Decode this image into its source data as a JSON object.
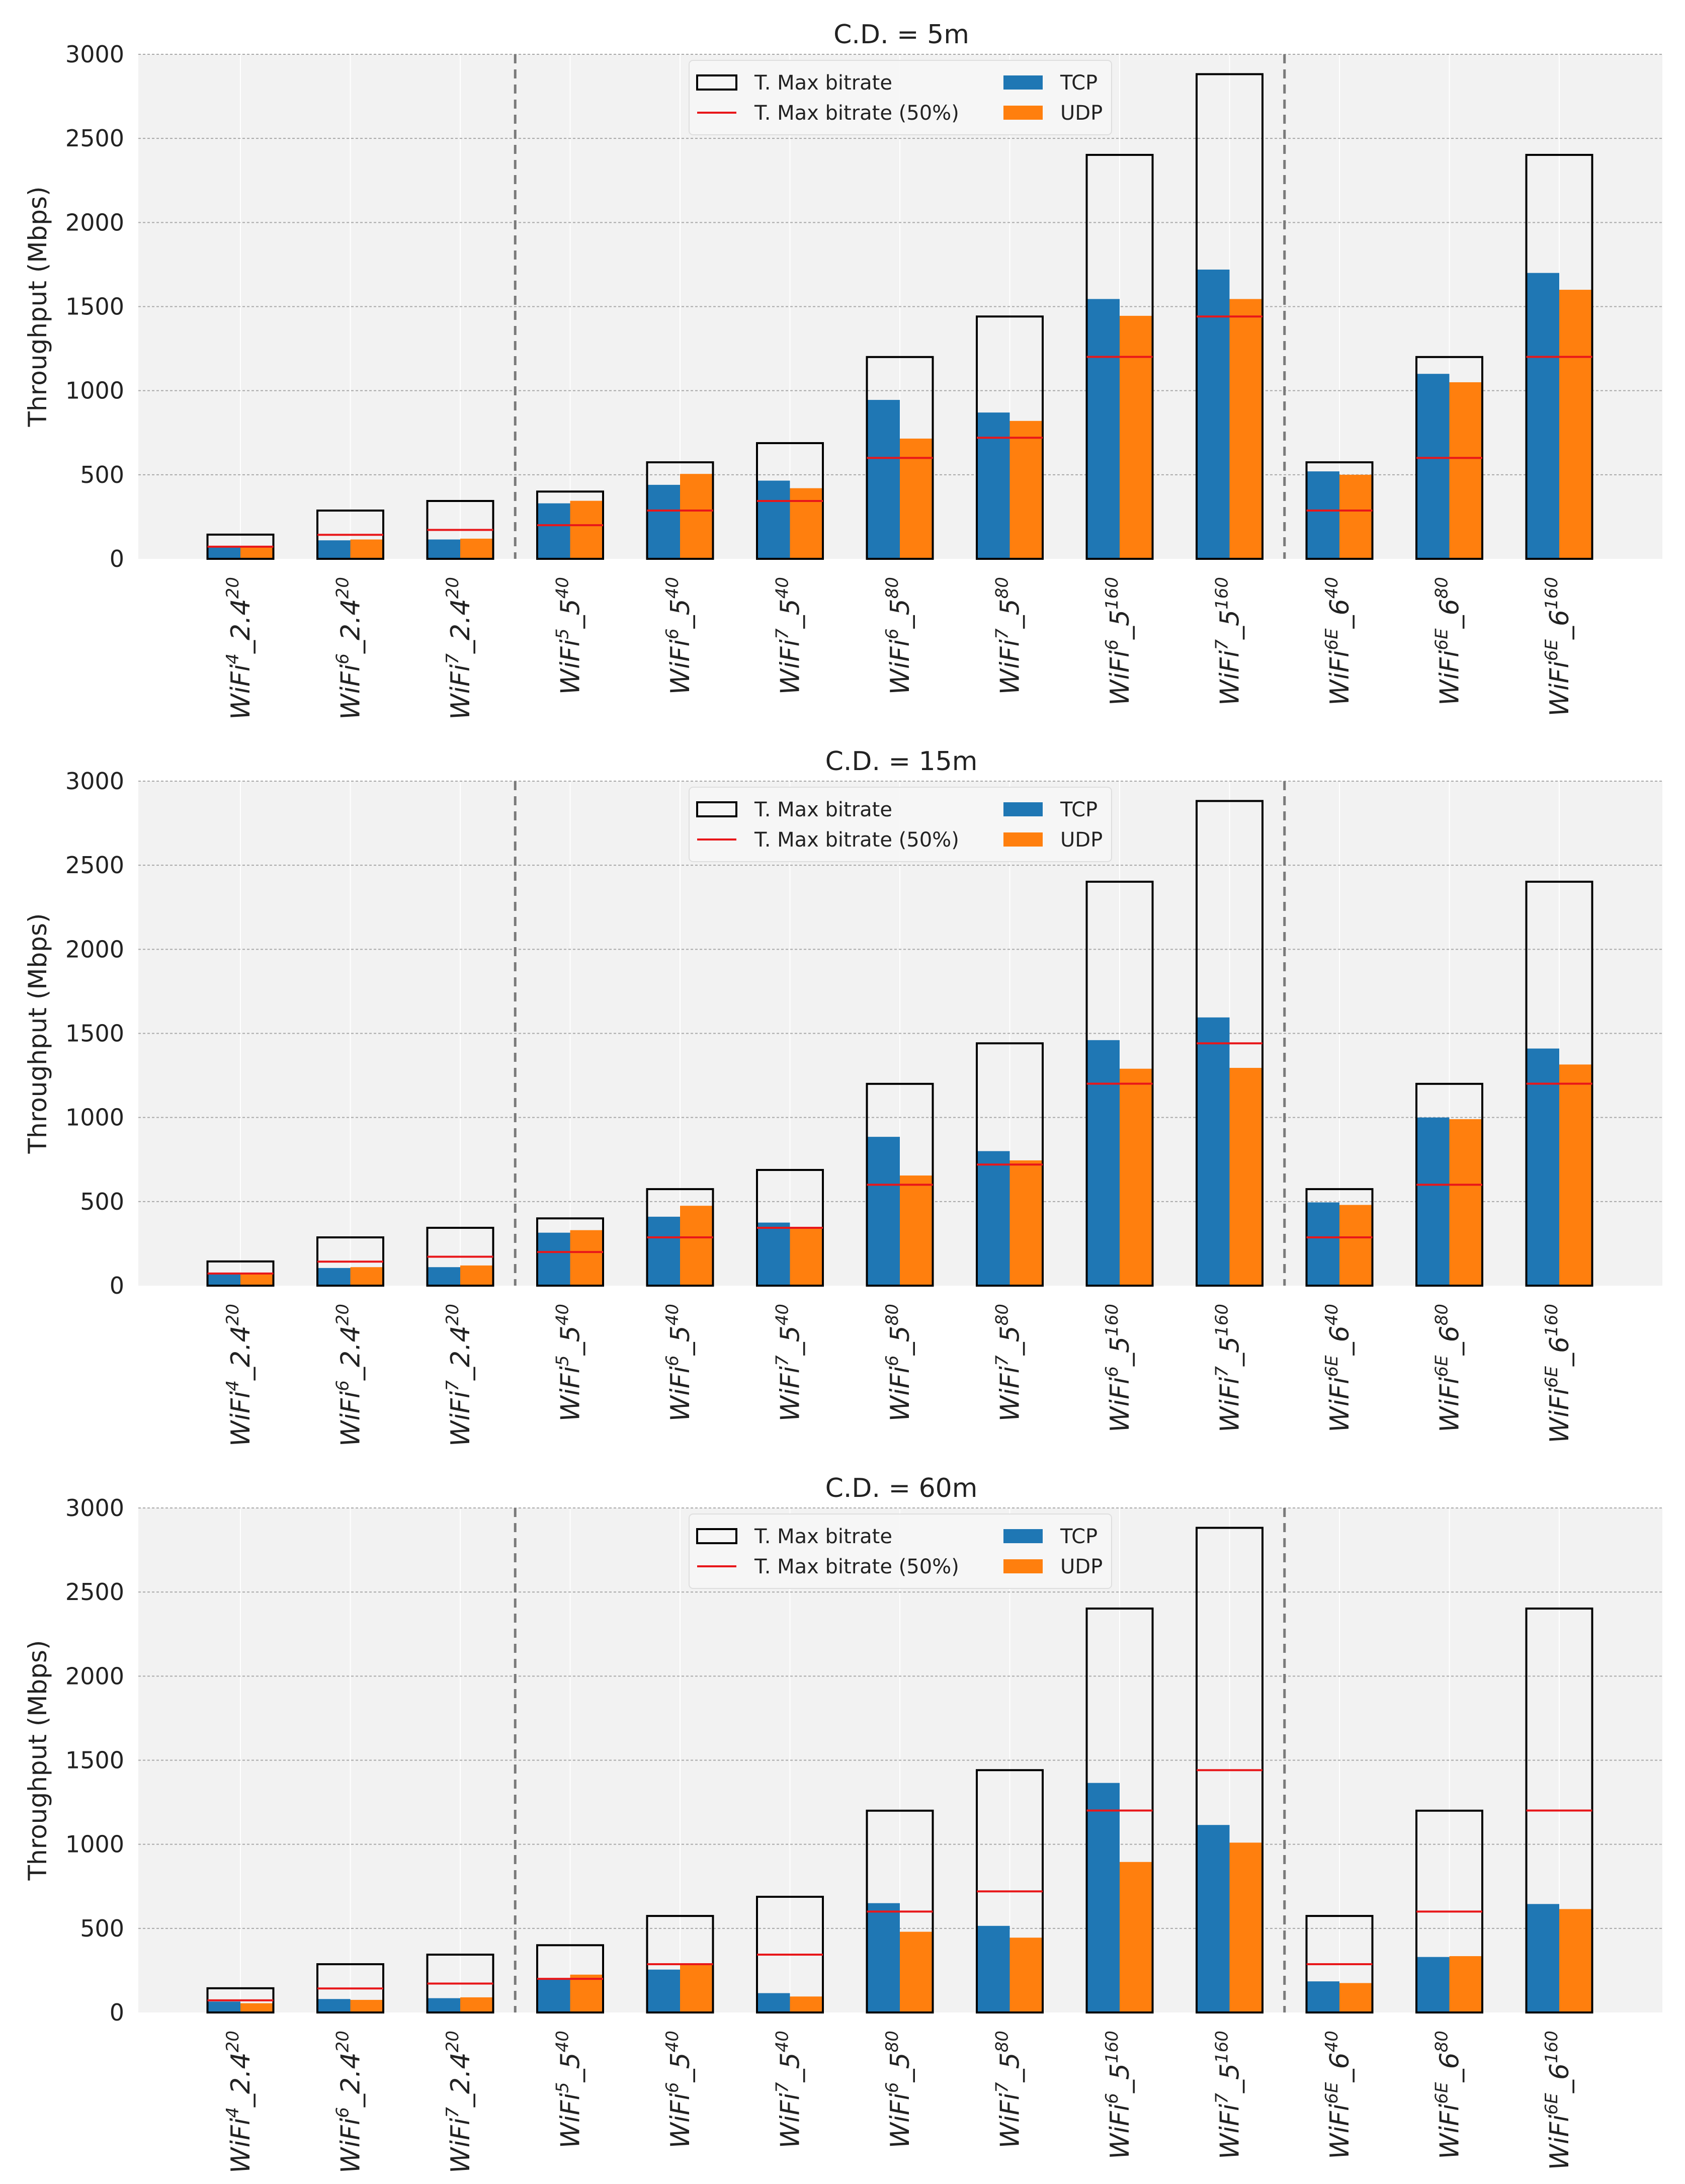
{
  "chart_data": [
    {
      "type": "bar",
      "title": "C.D. = 5m",
      "ylabel": "Throughput (Mbps)",
      "xlabel": "",
      "ylim": [
        0,
        3000
      ],
      "yticks": [
        0,
        500,
        1000,
        1500,
        2000,
        2500,
        3000
      ],
      "grid": true,
      "legend_position": "top-center",
      "group_separators_after_index": [
        2,
        9
      ],
      "categories": [
        {
          "base": "WiFi",
          "gen": "4",
          "band": "2.4",
          "width": "20"
        },
        {
          "base": "WiFi",
          "gen": "6",
          "band": "2.4",
          "width": "20"
        },
        {
          "base": "WiFi",
          "gen": "7",
          "band": "2.4",
          "width": "20"
        },
        {
          "base": "WiFi",
          "gen": "5",
          "band": "5",
          "width": "40"
        },
        {
          "base": "WiFi",
          "gen": "6",
          "band": "5",
          "width": "40"
        },
        {
          "base": "WiFi",
          "gen": "7",
          "band": "5",
          "width": "40"
        },
        {
          "base": "WiFi",
          "gen": "6",
          "band": "5",
          "width": "80"
        },
        {
          "base": "WiFi",
          "gen": "7",
          "band": "5",
          "width": "80"
        },
        {
          "base": "WiFi",
          "gen": "6",
          "band": "5",
          "width": "160"
        },
        {
          "base": "WiFi",
          "gen": "7",
          "band": "5",
          "width": "160"
        },
        {
          "base": "WiFi",
          "gen": "6E",
          "band": "6",
          "width": "40"
        },
        {
          "base": "WiFi",
          "gen": "6E",
          "band": "6",
          "width": "80"
        },
        {
          "base": "WiFi",
          "gen": "6E",
          "band": "6",
          "width": "160"
        }
      ],
      "series": [
        {
          "name": "T. Max bitrate",
          "kind": "outline",
          "values": [
            144,
            287,
            344,
            400,
            574,
            688,
            1200,
            1441,
            2402,
            2882,
            574,
            1200,
            2402
          ]
        },
        {
          "name": "T. Max bitrate (50%)",
          "kind": "line",
          "values": [
            72,
            143,
            172,
            200,
            287,
            344,
            600,
            720,
            1201,
            1441,
            287,
            600,
            1201
          ]
        },
        {
          "name": "TCP",
          "kind": "bar",
          "values": [
            75,
            110,
            115,
            330,
            440,
            465,
            945,
            870,
            1545,
            1720,
            520,
            1100,
            1700
          ]
        },
        {
          "name": "UDP",
          "kind": "bar",
          "values": [
            75,
            115,
            120,
            345,
            505,
            420,
            715,
            820,
            1445,
            1545,
            500,
            1050,
            1600
          ]
        }
      ]
    },
    {
      "type": "bar",
      "title": "C.D. = 15m",
      "ylabel": "Throughput (Mbps)",
      "xlabel": "",
      "ylim": [
        0,
        3000
      ],
      "yticks": [
        0,
        500,
        1000,
        1500,
        2000,
        2500,
        3000
      ],
      "grid": true,
      "legend_position": "top-center",
      "group_separators_after_index": [
        2,
        9
      ],
      "categories": [
        {
          "base": "WiFi",
          "gen": "4",
          "band": "2.4",
          "width": "20"
        },
        {
          "base": "WiFi",
          "gen": "6",
          "band": "2.4",
          "width": "20"
        },
        {
          "base": "WiFi",
          "gen": "7",
          "band": "2.4",
          "width": "20"
        },
        {
          "base": "WiFi",
          "gen": "5",
          "band": "5",
          "width": "40"
        },
        {
          "base": "WiFi",
          "gen": "6",
          "band": "5",
          "width": "40"
        },
        {
          "base": "WiFi",
          "gen": "7",
          "band": "5",
          "width": "40"
        },
        {
          "base": "WiFi",
          "gen": "6",
          "band": "5",
          "width": "80"
        },
        {
          "base": "WiFi",
          "gen": "7",
          "band": "5",
          "width": "80"
        },
        {
          "base": "WiFi",
          "gen": "6",
          "band": "5",
          "width": "160"
        },
        {
          "base": "WiFi",
          "gen": "7",
          "band": "5",
          "width": "160"
        },
        {
          "base": "WiFi",
          "gen": "6E",
          "band": "6",
          "width": "40"
        },
        {
          "base": "WiFi",
          "gen": "6E",
          "band": "6",
          "width": "80"
        },
        {
          "base": "WiFi",
          "gen": "6E",
          "band": "6",
          "width": "160"
        }
      ],
      "series": [
        {
          "name": "T. Max bitrate",
          "kind": "outline",
          "values": [
            144,
            287,
            344,
            400,
            574,
            688,
            1200,
            1441,
            2402,
            2882,
            574,
            1200,
            2402
          ]
        },
        {
          "name": "T. Max bitrate (50%)",
          "kind": "line",
          "values": [
            72,
            143,
            172,
            200,
            287,
            344,
            600,
            720,
            1201,
            1441,
            287,
            600,
            1201
          ]
        },
        {
          "name": "TCP",
          "kind": "bar",
          "values": [
            70,
            105,
            110,
            315,
            410,
            375,
            885,
            800,
            1460,
            1595,
            495,
            1000,
            1410
          ]
        },
        {
          "name": "UDP",
          "kind": "bar",
          "values": [
            75,
            110,
            120,
            330,
            475,
            350,
            655,
            745,
            1290,
            1295,
            480,
            990,
            1315
          ]
        }
      ]
    },
    {
      "type": "bar",
      "title": "C.D. = 60m",
      "ylabel": "Throughput (Mbps)",
      "xlabel": "",
      "ylim": [
        0,
        3000
      ],
      "yticks": [
        0,
        500,
        1000,
        1500,
        2000,
        2500,
        3000
      ],
      "grid": true,
      "legend_position": "top-center",
      "group_separators_after_index": [
        2,
        9
      ],
      "categories": [
        {
          "base": "WiFi",
          "gen": "4",
          "band": "2.4",
          "width": "20"
        },
        {
          "base": "WiFi",
          "gen": "6",
          "band": "2.4",
          "width": "20"
        },
        {
          "base": "WiFi",
          "gen": "7",
          "band": "2.4",
          "width": "20"
        },
        {
          "base": "WiFi",
          "gen": "5",
          "band": "5",
          "width": "40"
        },
        {
          "base": "WiFi",
          "gen": "6",
          "band": "5",
          "width": "40"
        },
        {
          "base": "WiFi",
          "gen": "7",
          "band": "5",
          "width": "40"
        },
        {
          "base": "WiFi",
          "gen": "6",
          "band": "5",
          "width": "80"
        },
        {
          "base": "WiFi",
          "gen": "7",
          "band": "5",
          "width": "80"
        },
        {
          "base": "WiFi",
          "gen": "6",
          "band": "5",
          "width": "160"
        },
        {
          "base": "WiFi",
          "gen": "7",
          "band": "5",
          "width": "160"
        },
        {
          "base": "WiFi",
          "gen": "6E",
          "band": "6",
          "width": "40"
        },
        {
          "base": "WiFi",
          "gen": "6E",
          "band": "6",
          "width": "80"
        },
        {
          "base": "WiFi",
          "gen": "6E",
          "band": "6",
          "width": "160"
        }
      ],
      "series": [
        {
          "name": "T. Max bitrate",
          "kind": "outline",
          "values": [
            144,
            287,
            344,
            400,
            574,
            688,
            1200,
            1441,
            2402,
            2882,
            574,
            1200,
            2402
          ]
        },
        {
          "name": "T. Max bitrate (50%)",
          "kind": "line",
          "values": [
            72,
            143,
            172,
            200,
            287,
            344,
            600,
            720,
            1201,
            1441,
            287,
            600,
            1201
          ]
        },
        {
          "name": "TCP",
          "kind": "bar",
          "values": [
            65,
            80,
            85,
            200,
            255,
            115,
            650,
            515,
            1365,
            1115,
            185,
            330,
            645
          ]
        },
        {
          "name": "UDP",
          "kind": "bar",
          "values": [
            55,
            75,
            90,
            225,
            285,
            95,
            480,
            445,
            895,
            1010,
            175,
            335,
            615
          ]
        }
      ]
    }
  ],
  "colors": {
    "background": "#ffffff",
    "axes_face": "#f2f2f2",
    "grid": "#a8a8a8",
    "outline": "#000000",
    "half_line": "#e8171a",
    "tcp": "#1f77b4",
    "udp": "#ff7f0e",
    "separator": "#7a7a7a",
    "text": "#222222"
  }
}
